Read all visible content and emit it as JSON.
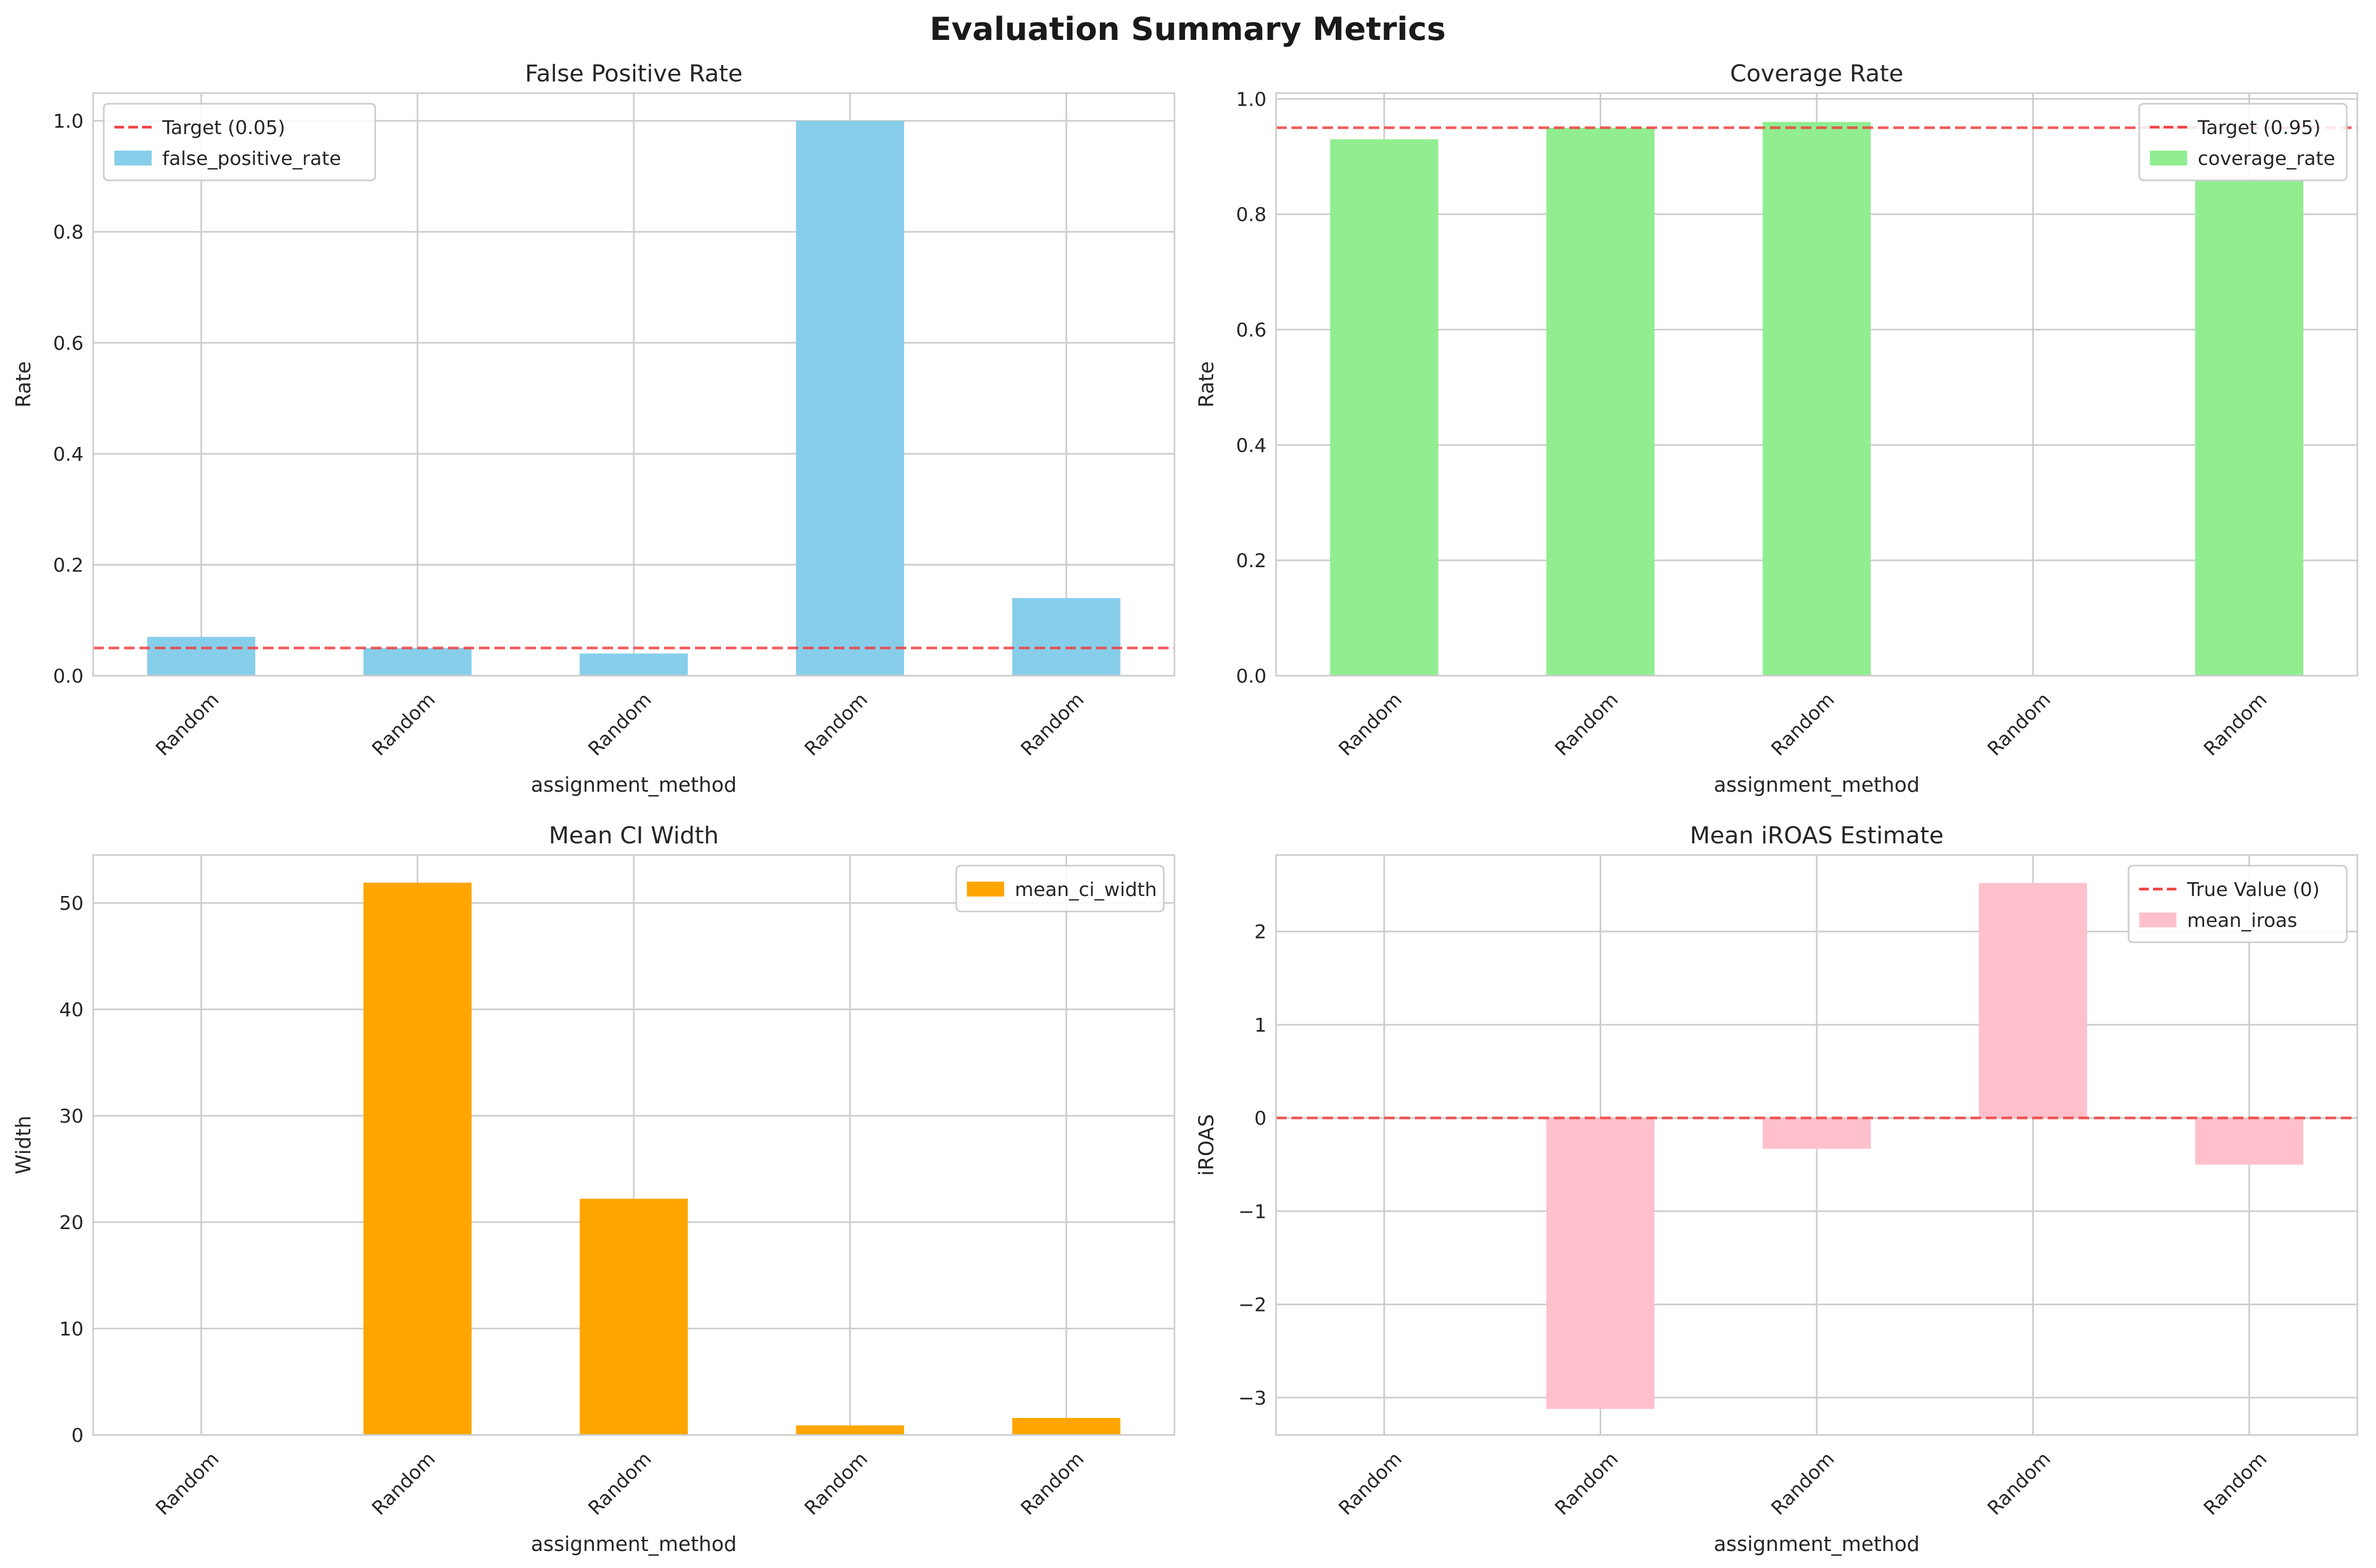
{
  "figure": {
    "suptitle": "Evaluation Summary Metrics"
  },
  "chart_data": [
    {
      "type": "bar",
      "title": "False Positive Rate",
      "xlabel": "assignment_method",
      "ylabel": "Rate",
      "categories": [
        "Random",
        "Random",
        "Random",
        "Random",
        "Random"
      ],
      "series": [
        {
          "name": "false_positive_rate",
          "values": [
            0.07,
            0.05,
            0.04,
            1.0,
            0.14
          ],
          "color": "#87CEEB"
        }
      ],
      "ylim": [
        0,
        1.05
      ],
      "yticks": [
        0.0,
        0.2,
        0.4,
        0.6,
        0.8,
        1.0
      ],
      "ytick_labels": [
        "0.0",
        "0.2",
        "0.4",
        "0.6",
        "0.8",
        "1.0"
      ],
      "reference_line": {
        "label": "Target (0.05)",
        "value": 0.05,
        "color": "#F04040"
      },
      "legend": "top-left",
      "grid": true
    },
    {
      "type": "bar",
      "title": "Coverage Rate",
      "xlabel": "assignment_method",
      "ylabel": "Rate",
      "categories": [
        "Random",
        "Random",
        "Random",
        "Random",
        "Random"
      ],
      "series": [
        {
          "name": "coverage_rate",
          "values": [
            0.93,
            0.95,
            0.96,
            0.0,
            0.86
          ],
          "color": "#90EE90"
        }
      ],
      "ylim": [
        0,
        1.01
      ],
      "yticks": [
        0.0,
        0.2,
        0.4,
        0.6,
        0.8,
        1.0
      ],
      "ytick_labels": [
        "0.0",
        "0.2",
        "0.4",
        "0.6",
        "0.8",
        "1.0"
      ],
      "reference_line": {
        "label": "Target (0.95)",
        "value": 0.95,
        "color": "#F04040"
      },
      "legend": "top-right",
      "grid": true
    },
    {
      "type": "bar",
      "title": "Mean CI Width",
      "xlabel": "assignment_method",
      "ylabel": "Width",
      "categories": [
        "Random",
        "Random",
        "Random",
        "Random",
        "Random"
      ],
      "series": [
        {
          "name": "mean_ci_width",
          "values": [
            0.0,
            51.9,
            22.2,
            0.9,
            1.6
          ],
          "color": "#FFA500"
        }
      ],
      "ylim": [
        0,
        54.5
      ],
      "yticks": [
        0,
        10,
        20,
        30,
        40,
        50
      ],
      "ytick_labels": [
        "0",
        "10",
        "20",
        "30",
        "40",
        "50"
      ],
      "legend": "top-right",
      "grid": true
    },
    {
      "type": "bar",
      "title": "Mean iROAS Estimate",
      "xlabel": "assignment_method",
      "ylabel": "iROAS",
      "categories": [
        "Random",
        "Random",
        "Random",
        "Random",
        "Random"
      ],
      "series": [
        {
          "name": "mean_iroas",
          "values": [
            0.0,
            -3.12,
            -0.33,
            2.52,
            -0.5
          ],
          "color": "#FFC0CB"
        }
      ],
      "ylim": [
        -3.4,
        2.82
      ],
      "yticks": [
        -3,
        -2,
        -1,
        0,
        1,
        2
      ],
      "ytick_labels": [
        "−3",
        "−2",
        "−1",
        "0",
        "1",
        "2"
      ],
      "reference_line": {
        "label": "True Value (0)",
        "value": 0,
        "color": "#F04040"
      },
      "legend": "top-right",
      "grid": true
    }
  ]
}
